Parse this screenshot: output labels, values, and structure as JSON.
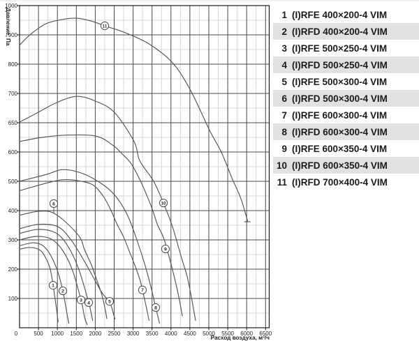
{
  "legend": {
    "rows": [
      {
        "num": "1",
        "label": "(I)RFE 400×200-4 VIM",
        "shaded": false
      },
      {
        "num": "2",
        "label": "(I)RFD 400×200-4 VIM",
        "shaded": true
      },
      {
        "num": "3",
        "label": "(I)RFE 500×250-4 VIM",
        "shaded": false
      },
      {
        "num": "4",
        "label": "(I)RFD 500×250-4 VIM",
        "shaded": true
      },
      {
        "num": "5",
        "label": "(I)RFE 500×300-4 VIM",
        "shaded": false
      },
      {
        "num": "6",
        "label": "(I)RFD 500×300-4 VIM",
        "shaded": true
      },
      {
        "num": "7",
        "label": "(I)RFE 600×300-4 VIM",
        "shaded": false
      },
      {
        "num": "8",
        "label": "(I)RFD 600×300-4 VIM",
        "shaded": true
      },
      {
        "num": "9",
        "label": "(I)RFE 600×350-4 VIM",
        "shaded": false
      },
      {
        "num": "10",
        "label": "(I)RFD 600×350-4 VIM",
        "shaded": true
      },
      {
        "num": "11",
        "label": "(I)RFD 700×400-4 VIM",
        "shaded": false
      }
    ],
    "shaded_color": "#e1e1e1",
    "text_color": "#1a1a1a"
  },
  "chart_data": {
    "type": "line",
    "title": "",
    "xlabel": "Расход воздуха, м³/ч",
    "ylabel": "Давление, Па",
    "x_ticks": [
      0,
      500,
      1000,
      1500,
      2000,
      2500,
      3000,
      3500,
      4000,
      4500,
      5000,
      5500,
      6000,
      6500
    ],
    "y_tick_labels": [
      0,
      100,
      200,
      300,
      400,
      500,
      600,
      650,
      700,
      800,
      900,
      1000
    ],
    "y_scale_note": "y-axis tick labels are evenly spaced on the chart (compressed non-linear scale between 600 and 700 Pa)",
    "xlim": [
      0,
      6590
    ],
    "grid": "major dark every 500 m3/h and every labeled pressure; light minor lines at midpoints",
    "legend_position": "right table",
    "series": [
      {
        "name": "1 (I)RFE 400×200-4 VIM",
        "points": [
          [
            0,
            268
          ],
          [
            250,
            274
          ],
          [
            500,
            268
          ],
          [
            650,
            248
          ],
          [
            800,
            205
          ],
          [
            886,
            145
          ],
          [
            960,
            80
          ],
          [
            1020,
            20
          ]
        ]
      },
      {
        "name": "2 (I)RFD 400×200-4 VIM",
        "points": [
          [
            0,
            280
          ],
          [
            350,
            290
          ],
          [
            600,
            282
          ],
          [
            800,
            252
          ],
          [
            1000,
            195
          ],
          [
            1144,
            126
          ],
          [
            1250,
            50
          ],
          [
            1300,
            15
          ]
        ]
      },
      {
        "name": "3 (I)RFE 500×250-4 VIM",
        "points": [
          [
            0,
            300
          ],
          [
            450,
            312
          ],
          [
            850,
            302
          ],
          [
            1150,
            262
          ],
          [
            1400,
            195
          ],
          [
            1624,
            95
          ],
          [
            1720,
            35
          ],
          [
            1790,
            10
          ]
        ]
      },
      {
        "name": "4 (I)RFD 500×250-4 VIM",
        "points": [
          [
            0,
            322
          ],
          [
            500,
            336
          ],
          [
            950,
            324
          ],
          [
            1250,
            284
          ],
          [
            1550,
            205
          ],
          [
            1827,
            86
          ],
          [
            1930,
            25
          ]
        ]
      },
      {
        "name": "5 (I)RFE 500×300-4 VIM",
        "points": [
          [
            0,
            338
          ],
          [
            500,
            353
          ],
          [
            1000,
            346
          ],
          [
            1350,
            302
          ],
          [
            1700,
            230
          ],
          [
            2000,
            160
          ],
          [
            2200,
            115
          ],
          [
            2380,
            88
          ],
          [
            2520,
            30
          ]
        ]
      },
      {
        "name": "6 (I)RFD 500×300-4 VIM",
        "points": [
          [
            0,
            384
          ],
          [
            400,
            396
          ],
          [
            700,
            398
          ],
          [
            904,
            391
          ],
          [
            1200,
            363
          ],
          [
            1587,
            310
          ],
          [
            1716,
            267
          ],
          [
            1900,
            214
          ],
          [
            2030,
            167
          ],
          [
            2159,
            119
          ],
          [
            2251,
            71
          ],
          [
            2306,
            31
          ]
        ]
      },
      {
        "name": "7 (I)RFE 600×300-4 VIM",
        "points": [
          [
            0,
            468
          ],
          [
            600,
            490
          ],
          [
            1100,
            505
          ],
          [
            1500,
            503
          ],
          [
            1919,
            489
          ],
          [
            2196,
            452
          ],
          [
            2399,
            405
          ],
          [
            2583,
            352
          ],
          [
            2749,
            310
          ],
          [
            2897,
            262
          ],
          [
            3044,
            214
          ],
          [
            3173,
            167
          ],
          [
            3247,
            129
          ],
          [
            3350,
            70
          ],
          [
            3420,
            25
          ]
        ]
      },
      {
        "name": "8 (I)RFD 600×300-4 VIM",
        "points": [
          [
            0,
            500
          ],
          [
            700,
            523
          ],
          [
            1160,
            540
          ],
          [
            1720,
            524
          ],
          [
            2210,
            488
          ],
          [
            2500,
            455
          ],
          [
            2700,
            420
          ],
          [
            2900,
            370
          ],
          [
            3100,
            300
          ],
          [
            3300,
            220
          ],
          [
            3450,
            150
          ],
          [
            3598,
            69
          ],
          [
            3700,
            15
          ]
        ]
      },
      {
        "name": "9 (I)RFE 600×350-4 VIM",
        "points": [
          [
            0,
            618
          ],
          [
            600,
            625
          ],
          [
            1300,
            629
          ],
          [
            2030,
            627
          ],
          [
            2454,
            612
          ],
          [
            2700,
            595
          ],
          [
            2950,
            560
          ],
          [
            3200,
            500
          ],
          [
            3400,
            440
          ],
          [
            3520,
            400
          ],
          [
            3650,
            350
          ],
          [
            3819,
            302
          ],
          [
            4040,
            198
          ],
          [
            4200,
            110
          ],
          [
            4300,
            40
          ]
        ]
      },
      {
        "name": "10 (I)RFD 600×350-4 VIM",
        "points": [
          [
            0,
            651
          ],
          [
            500,
            668
          ],
          [
            1000,
            685
          ],
          [
            1513,
            695
          ],
          [
            2000,
            687
          ],
          [
            2500,
            668
          ],
          [
            3026,
            618
          ],
          [
            3173,
            571
          ],
          [
            3542,
            500
          ],
          [
            3801,
            426
          ],
          [
            4040,
            345
          ],
          [
            4280,
            238
          ],
          [
            4430,
            174
          ],
          [
            4560,
            90
          ],
          [
            4650,
            25
          ]
        ]
      },
      {
        "name": "11 (I)RFD 700×400-4 VIM",
        "end_tick": true,
        "points": [
          [
            0,
            865
          ],
          [
            300,
            903
          ],
          [
            700,
            938
          ],
          [
            1100,
            952
          ],
          [
            1500,
            957
          ],
          [
            1900,
            947
          ],
          [
            2251,
            931
          ],
          [
            2800,
            907
          ],
          [
            3420,
            869
          ],
          [
            4040,
            805
          ],
          [
            4520,
            710
          ],
          [
            5020,
            637
          ],
          [
            5330,
            600
          ],
          [
            5609,
            512
          ],
          [
            5850,
            440
          ],
          [
            6030,
            362
          ]
        ]
      }
    ],
    "markers": [
      {
        "n": "1",
        "q": 886,
        "p": 145
      },
      {
        "n": "2",
        "q": 1144,
        "p": 126
      },
      {
        "n": "3",
        "q": 1624,
        "p": 95
      },
      {
        "n": "4",
        "q": 1827,
        "p": 86
      },
      {
        "n": "5",
        "q": 2380,
        "p": 90
      },
      {
        "n": "6",
        "q": 904,
        "p": 424,
        "leader": 9
      },
      {
        "n": "7",
        "q": 3247,
        "p": 129
      },
      {
        "n": "8",
        "q": 3598,
        "p": 69
      },
      {
        "n": "9",
        "q": 3856,
        "p": 269
      },
      {
        "n": "10",
        "q": 3801,
        "p": 426
      },
      {
        "n": "11",
        "q": 2251,
        "p": 931
      }
    ],
    "colors": {
      "curve": "#555555",
      "grid_major": "#4a4a4a",
      "grid_minor": "#d4d4d4",
      "frame": "#1a1a1a",
      "text": "#222222"
    }
  }
}
